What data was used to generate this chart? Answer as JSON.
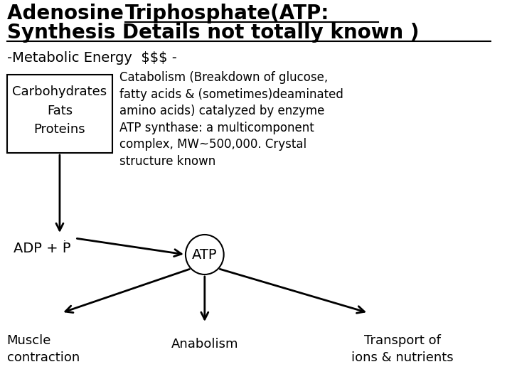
{
  "title_line1": "Adenosine Triphosphate(ATP:",
  "title_line2": "Synthesis Details not totally known )",
  "subtitle": "-Metabolic Energy  $$$ -",
  "box_items": [
    "Carbohydrates",
    "Fats",
    "Proteins"
  ],
  "catabolism_text": "Catabolism (Breakdown of glucose,\nfatty acids & (sometimes)deaminated\namino acids) catalyzed by enzyme\nATP synthase: a multicomponent\ncomplex, MW~500,000. Crystal\nstructure known",
  "adp_label": "ADP + P",
  "adp_subscript": "i",
  "atp_label": "ATP",
  "anabolism_label": "Anabolism",
  "muscle_label": "Muscle\ncontraction",
  "transport_label": "Transport of\nions & nutrients",
  "bg_color": "#ffffff",
  "text_color": "#000000",
  "title_fontsize": 20,
  "subtitle_fontsize": 14,
  "body_fontsize": 13,
  "small_fontsize": 12
}
